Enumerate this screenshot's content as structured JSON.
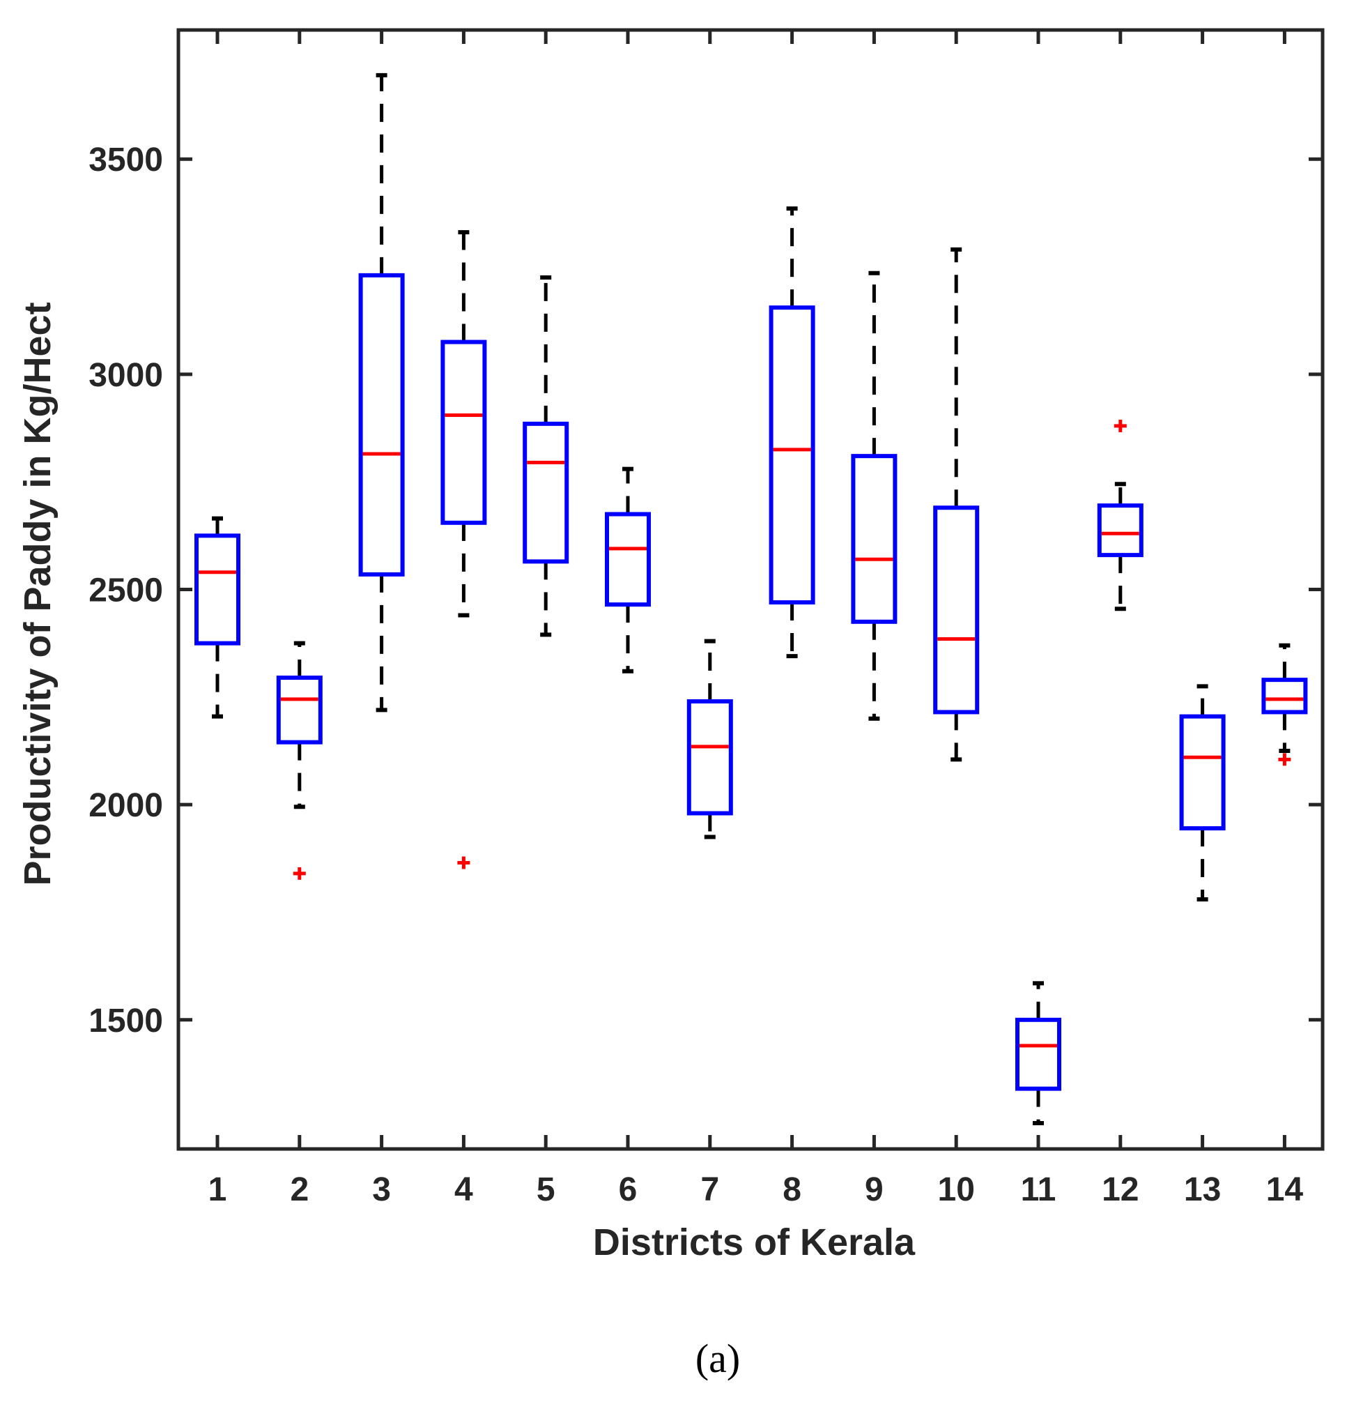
{
  "chart_data": {
    "type": "boxplot",
    "xlabel": "Districts of Kerala",
    "ylabel": "Productivity of Paddy in Kg/Hect",
    "caption": "(a)",
    "ylim": [
      1200,
      3800
    ],
    "yticks": [
      1500,
      2000,
      2500,
      3000,
      3500
    ],
    "categories": [
      "1",
      "2",
      "3",
      "4",
      "5",
      "6",
      "7",
      "8",
      "9",
      "10",
      "11",
      "12",
      "13",
      "14"
    ],
    "boxes": [
      {
        "category": "1",
        "whisker_low": 2205,
        "q1": 2375,
        "median": 2540,
        "q3": 2625,
        "whisker_high": 2665,
        "outliers": []
      },
      {
        "category": "2",
        "whisker_low": 1995,
        "q1": 2145,
        "median": 2245,
        "q3": 2295,
        "whisker_high": 2375,
        "outliers": [
          1840
        ]
      },
      {
        "category": "3",
        "whisker_low": 2220,
        "q1": 2535,
        "median": 2815,
        "q3": 3230,
        "whisker_high": 3695,
        "outliers": []
      },
      {
        "category": "4",
        "whisker_low": 2440,
        "q1": 2655,
        "median": 2905,
        "q3": 3075,
        "whisker_high": 3330,
        "outliers": [
          1865
        ]
      },
      {
        "category": "5",
        "whisker_low": 2395,
        "q1": 2565,
        "median": 2795,
        "q3": 2885,
        "whisker_high": 3225,
        "outliers": []
      },
      {
        "category": "6",
        "whisker_low": 2310,
        "q1": 2465,
        "median": 2595,
        "q3": 2675,
        "whisker_high": 2780,
        "outliers": []
      },
      {
        "category": "7",
        "whisker_low": 1925,
        "q1": 1980,
        "median": 2135,
        "q3": 2240,
        "whisker_high": 2380,
        "outliers": []
      },
      {
        "category": "8",
        "whisker_low": 2345,
        "q1": 2470,
        "median": 2825,
        "q3": 3155,
        "whisker_high": 3385,
        "outliers": []
      },
      {
        "category": "9",
        "whisker_low": 2200,
        "q1": 2425,
        "median": 2570,
        "q3": 2810,
        "whisker_high": 3235,
        "outliers": []
      },
      {
        "category": "10",
        "whisker_low": 2105,
        "q1": 2215,
        "median": 2385,
        "q3": 2690,
        "whisker_high": 3290,
        "outliers": []
      },
      {
        "category": "11",
        "whisker_low": 1260,
        "q1": 1340,
        "median": 1440,
        "q3": 1500,
        "whisker_high": 1585,
        "outliers": []
      },
      {
        "category": "12",
        "whisker_low": 2455,
        "q1": 2580,
        "median": 2630,
        "q3": 2695,
        "whisker_high": 2745,
        "outliers": [
          2880
        ]
      },
      {
        "category": "13",
        "whisker_low": 1780,
        "q1": 1945,
        "median": 2110,
        "q3": 2205,
        "whisker_high": 2275,
        "outliers": []
      },
      {
        "category": "14",
        "whisker_low": 2125,
        "q1": 2215,
        "median": 2245,
        "q3": 2290,
        "whisker_high": 2370,
        "outliers": [
          2105
        ]
      }
    ],
    "colors": {
      "box": "#0000ff",
      "median": "#ff0000",
      "whisker": "#000000",
      "outlier": "#ff0000",
      "axis": "#262626"
    }
  }
}
